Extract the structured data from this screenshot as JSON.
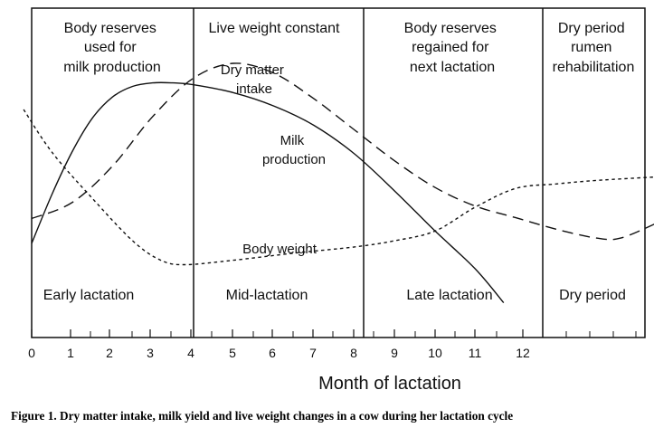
{
  "phases": [
    {
      "top_lines": [
        "Body reserves",
        "used for",
        "milk production"
      ],
      "bottom": "Early lactation"
    },
    {
      "top_lines": [
        "Live weight constant"
      ],
      "bottom": "Mid-lactation"
    },
    {
      "top_lines": [
        "Body reserves",
        "regained for",
        "next lactation"
      ],
      "bottom": "Late lactation"
    },
    {
      "top_lines": [
        "Dry period",
        "rumen",
        "rehabilitation"
      ],
      "bottom": "Dry period"
    }
  ],
  "curve_labels": {
    "dry_matter_intake": [
      "Dry matter",
      "intake"
    ],
    "milk_production": [
      "Milk",
      "production"
    ],
    "body_weight": "Body weight"
  },
  "axis": {
    "ticks": [
      "0",
      "1",
      "2",
      "3",
      "4",
      "5",
      "6",
      "7",
      "8",
      "9",
      "10",
      "11",
      "12"
    ],
    "xlabel": "Month of lactation"
  },
  "caption": "Figure 1.  Dry matter intake, milk yield and live weight changes in a cow during her lactation cycle",
  "curves": {
    "dry_matter_intake": {
      "style": "dashed",
      "points": [
        [
          0,
          3.85
        ],
        [
          1,
          4.75
        ],
        [
          2,
          6.8
        ],
        [
          3,
          9.6
        ],
        [
          4,
          11.75
        ],
        [
          5,
          12.6
        ],
        [
          6,
          12.05
        ],
        [
          7,
          10.6
        ],
        [
          8,
          8.85
        ],
        [
          9,
          7.1
        ],
        [
          10,
          5.6
        ],
        [
          11,
          4.55
        ],
        [
          12,
          3.9
        ],
        [
          13,
          3.25
        ],
        [
          14,
          2.75
        ],
        [
          14.6,
          2.75
        ],
        [
          15.5,
          3.6
        ]
      ]
    },
    "milk_production": {
      "style": "solid",
      "points": [
        [
          0,
          2.45
        ],
        [
          0.5,
          5.2
        ],
        [
          1,
          7.6
        ],
        [
          1.5,
          9.5
        ],
        [
          2,
          10.7
        ],
        [
          2.5,
          11.3
        ],
        [
          3,
          11.5
        ],
        [
          3.5,
          11.5
        ],
        [
          4,
          11.4
        ],
        [
          5,
          10.95
        ],
        [
          6,
          10.2
        ],
        [
          7,
          9.1
        ],
        [
          8,
          7.5
        ],
        [
          9,
          5.4
        ],
        [
          10,
          3.15
        ],
        [
          11,
          1.0
        ],
        [
          11.7,
          -0.9
        ]
      ]
    },
    "body_weight": {
      "style": "dotted",
      "points": [
        [
          -0.2,
          10.0
        ],
        [
          0.5,
          7.6
        ],
        [
          1.5,
          5.0
        ],
        [
          2.5,
          2.6
        ],
        [
          3.2,
          1.5
        ],
        [
          3.8,
          1.25
        ],
        [
          5,
          1.5
        ],
        [
          6.5,
          1.9
        ],
        [
          8,
          2.25
        ],
        [
          9,
          2.6
        ],
        [
          10,
          3.15
        ],
        [
          11,
          4.5
        ],
        [
          12,
          5.55
        ],
        [
          13,
          5.8
        ],
        [
          14,
          6.0
        ],
        [
          15.5,
          6.2
        ]
      ]
    }
  },
  "colors": {
    "ink": "#111111",
    "background": "#ffffff"
  }
}
